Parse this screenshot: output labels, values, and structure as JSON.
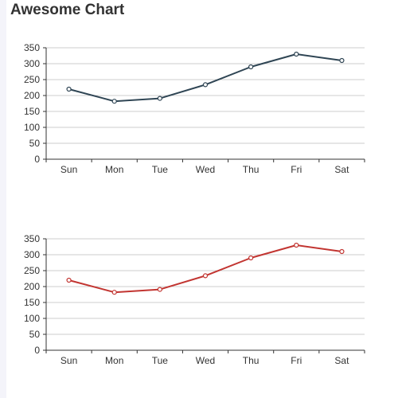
{
  "title": "Awesome Chart",
  "colors": {
    "series_top": "#2f4554",
    "series_bottom": "#c23531",
    "grid": "#cccccc",
    "axis": "#333333"
  },
  "chart_data": [
    {
      "type": "line",
      "categories": [
        "Sun",
        "Mon",
        "Tue",
        "Wed",
        "Thu",
        "Fri",
        "Sat"
      ],
      "values": [
        220,
        182,
        191,
        234,
        290,
        330,
        310
      ],
      "ylim": [
        0,
        350
      ],
      "yticks": [
        "0",
        "50",
        "100",
        "150",
        "200",
        "250",
        "300",
        "350"
      ],
      "grid": true,
      "color": "#2f4554"
    },
    {
      "type": "line",
      "categories": [
        "Sun",
        "Mon",
        "Tue",
        "Wed",
        "Thu",
        "Fri",
        "Sat"
      ],
      "values": [
        220,
        182,
        191,
        234,
        290,
        330,
        310
      ],
      "ylim": [
        0,
        350
      ],
      "yticks": [
        "0",
        "50",
        "100",
        "150",
        "200",
        "250",
        "300",
        "350"
      ],
      "grid": true,
      "color": "#c23531"
    }
  ]
}
